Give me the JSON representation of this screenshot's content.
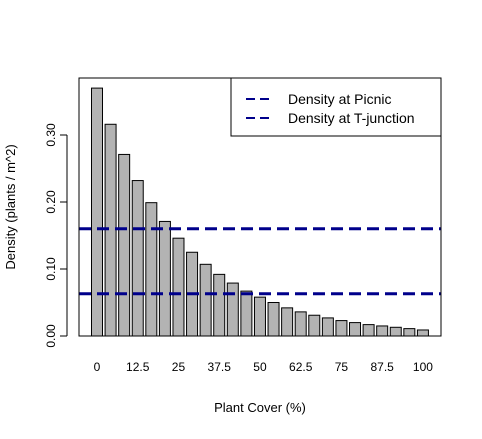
{
  "chart_data": {
    "type": "bar",
    "xlabel": "Plant Cover (%)",
    "ylabel": "Density (plants / m^2)",
    "ylim": [
      0,
      0.38
    ],
    "yticks": [
      0.0,
      0.1,
      0.2,
      0.3
    ],
    "ytick_labels": [
      "0.00",
      "0.10",
      "0.20",
      "0.30"
    ],
    "categories": [
      "0",
      "4.17",
      "8.33",
      "12.5",
      "16.67",
      "20.83",
      "25",
      "29.17",
      "33.33",
      "37.5",
      "41.67",
      "45.83",
      "50",
      "54.17",
      "58.33",
      "62.5",
      "66.67",
      "70.83",
      "75",
      "79.17",
      "83.33",
      "87.5",
      "91.67",
      "95.83",
      "100"
    ],
    "xtick_labels": [
      "0",
      "12.5",
      "25",
      "37.5",
      "50",
      "62.5",
      "75",
      "87.5",
      "100"
    ],
    "values": [
      0.37,
      0.316,
      0.271,
      0.232,
      0.199,
      0.171,
      0.146,
      0.125,
      0.107,
      0.092,
      0.079,
      0.067,
      0.058,
      0.05,
      0.042,
      0.036,
      0.031,
      0.027,
      0.023,
      0.02,
      0.017,
      0.015,
      0.013,
      0.011,
      0.009
    ],
    "bar_color": "#b3b3b3",
    "bar_edge": "#000000",
    "reference_lines": [
      {
        "name": "Density at Picnic",
        "value": 0.16,
        "color": "#00008b"
      },
      {
        "name": "Density at T-junction",
        "value": 0.063,
        "color": "#00008b"
      }
    ],
    "legend": {
      "placement": "top-right",
      "entries": [
        "Density at Picnic",
        "Density at T-junction"
      ]
    },
    "grid": false
  }
}
